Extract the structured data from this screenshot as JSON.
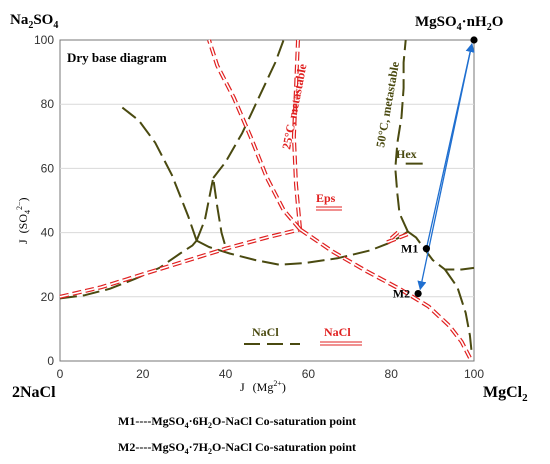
{
  "chart_data": {
    "type": "scatter",
    "subtitle": "Dry base diagram",
    "xlabel_main": "J",
    "xlabel_unit": "(Mg",
    "xlabel_sup": "2+",
    "ylabel_main": "J",
    "ylabel_unit": "(SO",
    "ylabel_sub": "4",
    "ylabel_sup": "2−",
    "xlim": [
      0,
      100
    ],
    "ylim": [
      0,
      100
    ],
    "xticks": [
      "0",
      "20",
      "40",
      "60",
      "80",
      "100"
    ],
    "yticks": [
      "0",
      "20",
      "40",
      "60",
      "80",
      "100"
    ],
    "corners": {
      "top_left": {
        "main": "Na",
        "sub": "2",
        "rest": "SO",
        "sub2": "4"
      },
      "top_right": {
        "main": "MgSO",
        "sub": "4",
        "rest": "·nH",
        "sub2": "2",
        "tail": "O"
      },
      "bottom_left": {
        "main": "2NaCl"
      },
      "bottom_right": {
        "main": "MgCl",
        "sub": "2"
      }
    },
    "curve_labels": {
      "red_25": "25°C, metastable",
      "olive_50": "50°C, metastable",
      "eps": "Eps",
      "hex": "Hex"
    },
    "legend": {
      "olive_label": "NaCl",
      "red_label": "NaCl"
    },
    "points": [
      {
        "name": "M1",
        "x": 88.5,
        "y": 35.0
      },
      {
        "name": "M2",
        "x": 86.5,
        "y": 21.0
      },
      {
        "name": "",
        "x": 100.0,
        "y": 100.0
      }
    ],
    "series": [
      {
        "color": "#4a4a10",
        "style": "long-dash",
        "points": [
          [
            0,
            19.5
          ],
          [
            6,
            20.5
          ],
          [
            12,
            22.5
          ],
          [
            18,
            25.5
          ],
          [
            24,
            29
          ],
          [
            29,
            33.5
          ],
          [
            32,
            36
          ],
          [
            33,
            37.5
          ]
        ]
      },
      {
        "color": "#4a4a10",
        "style": "long-dash",
        "points": [
          [
            33,
            37.5
          ],
          [
            36,
            35.5
          ],
          [
            41,
            33.5
          ],
          [
            47,
            31.5
          ],
          [
            53,
            30
          ],
          [
            59,
            30.5
          ],
          [
            67,
            32
          ],
          [
            75,
            34.5
          ],
          [
            79,
            36.5
          ],
          [
            82,
            38.5
          ],
          [
            84,
            40.3
          ]
        ]
      },
      {
        "color": "#4a4a10",
        "style": "long-dash",
        "points": [
          [
            33,
            37.5
          ],
          [
            35,
            44
          ],
          [
            37,
            57
          ],
          [
            38,
            48
          ],
          [
            39,
            40
          ],
          [
            40,
            35.5
          ]
        ]
      },
      {
        "color": "#4a4a10",
        "style": "long-dash",
        "points": [
          [
            33,
            37.5
          ],
          [
            31,
            45
          ],
          [
            27,
            58
          ],
          [
            23,
            68
          ],
          [
            19,
            75
          ],
          [
            14,
            80
          ]
        ]
      },
      {
        "color": "#4a4a10",
        "style": "long-dash",
        "points": [
          [
            37,
            57
          ],
          [
            40,
            62
          ],
          [
            44,
            71
          ],
          [
            48,
            82
          ],
          [
            52,
            93
          ],
          [
            54,
            100
          ]
        ]
      },
      {
        "color": "#4a4a10",
        "style": "long-dash",
        "points": [
          [
            84,
            40.3
          ],
          [
            82,
            46
          ],
          [
            81.5,
            52
          ],
          [
            81,
            60
          ],
          [
            81.5,
            68
          ],
          [
            82.5,
            76
          ],
          [
            83,
            85
          ],
          [
            83,
            93
          ],
          [
            83.5,
            100
          ]
        ]
      },
      {
        "color": "#4a4a10",
        "style": "long-dash",
        "points": [
          [
            84,
            40.3
          ],
          [
            86,
            38.5
          ],
          [
            88,
            35
          ],
          [
            90,
            31.5
          ],
          [
            93,
            28.5
          ],
          [
            97,
            28.5
          ],
          [
            100,
            29
          ]
        ]
      },
      {
        "color": "#4a4a10",
        "style": "long-dash",
        "points": [
          [
            93,
            28.5
          ],
          [
            96,
            23
          ],
          [
            98,
            15
          ],
          [
            99,
            8
          ],
          [
            99.5,
            2
          ]
        ]
      },
      {
        "color": "#4a4a10",
        "style": "long-dash",
        "points": [
          [
            83.5,
            61.5
          ],
          [
            89,
            61.5
          ]
        ]
      },
      {
        "color": "#e02020",
        "style": "double-dash",
        "points": [
          [
            0,
            20
          ],
          [
            10,
            23
          ],
          [
            20,
            27
          ],
          [
            30,
            31
          ],
          [
            40,
            35
          ],
          [
            50,
            38.5
          ],
          [
            58,
            41
          ]
        ]
      },
      {
        "color": "#e02020",
        "style": "double-dash",
        "points": [
          [
            58,
            41
          ],
          [
            57,
            55
          ],
          [
            56.5,
            70
          ],
          [
            57,
            85
          ],
          [
            57.5,
            100
          ]
        ]
      },
      {
        "color": "#e02020",
        "style": "double-dash",
        "points": [
          [
            58,
            41
          ],
          [
            66,
            34
          ],
          [
            74,
            28
          ],
          [
            82,
            22.5
          ],
          [
            89,
            17
          ],
          [
            94,
            11
          ],
          [
            97,
            6
          ],
          [
            99,
            1
          ]
        ]
      },
      {
        "color": "#e02020",
        "style": "double-dash",
        "points": [
          [
            58,
            41
          ],
          [
            54,
            47
          ],
          [
            50,
            57
          ],
          [
            46,
            70
          ],
          [
            42,
            82
          ],
          [
            38,
            92
          ],
          [
            36,
            100
          ]
        ]
      },
      {
        "color": "#e02020",
        "style": "double-dash",
        "points": [
          [
            79,
            37
          ],
          [
            84,
            39.5
          ]
        ]
      },
      {
        "color": "#e02020",
        "style": "double-dash",
        "points": [
          [
            80,
            38.2
          ],
          [
            82,
            40.5
          ]
        ]
      }
    ],
    "arrows": [
      {
        "from": [
          88.5,
          35.0
        ],
        "to": [
          99.5,
          98.8
        ],
        "color": "#1f6fd0"
      },
      {
        "from": [
          99.5,
          98.8
        ],
        "to": [
          87.0,
          22.3
        ],
        "color": "#1f6fd0"
      }
    ],
    "notes": [
      {
        "label": "M1",
        "sep": "----",
        "formula_pre": "MgSO",
        "sub": "4",
        "formula_mid": "·6H",
        "sub2": "2",
        "formula_post": "O-NaCl Co-saturation point"
      },
      {
        "label": "M2",
        "sep": "----",
        "formula_pre": "MgSO",
        "sub": "4",
        "formula_mid": "·7H",
        "sub2": "2",
        "formula_post": "O-NaCl Co-saturation point"
      }
    ]
  }
}
